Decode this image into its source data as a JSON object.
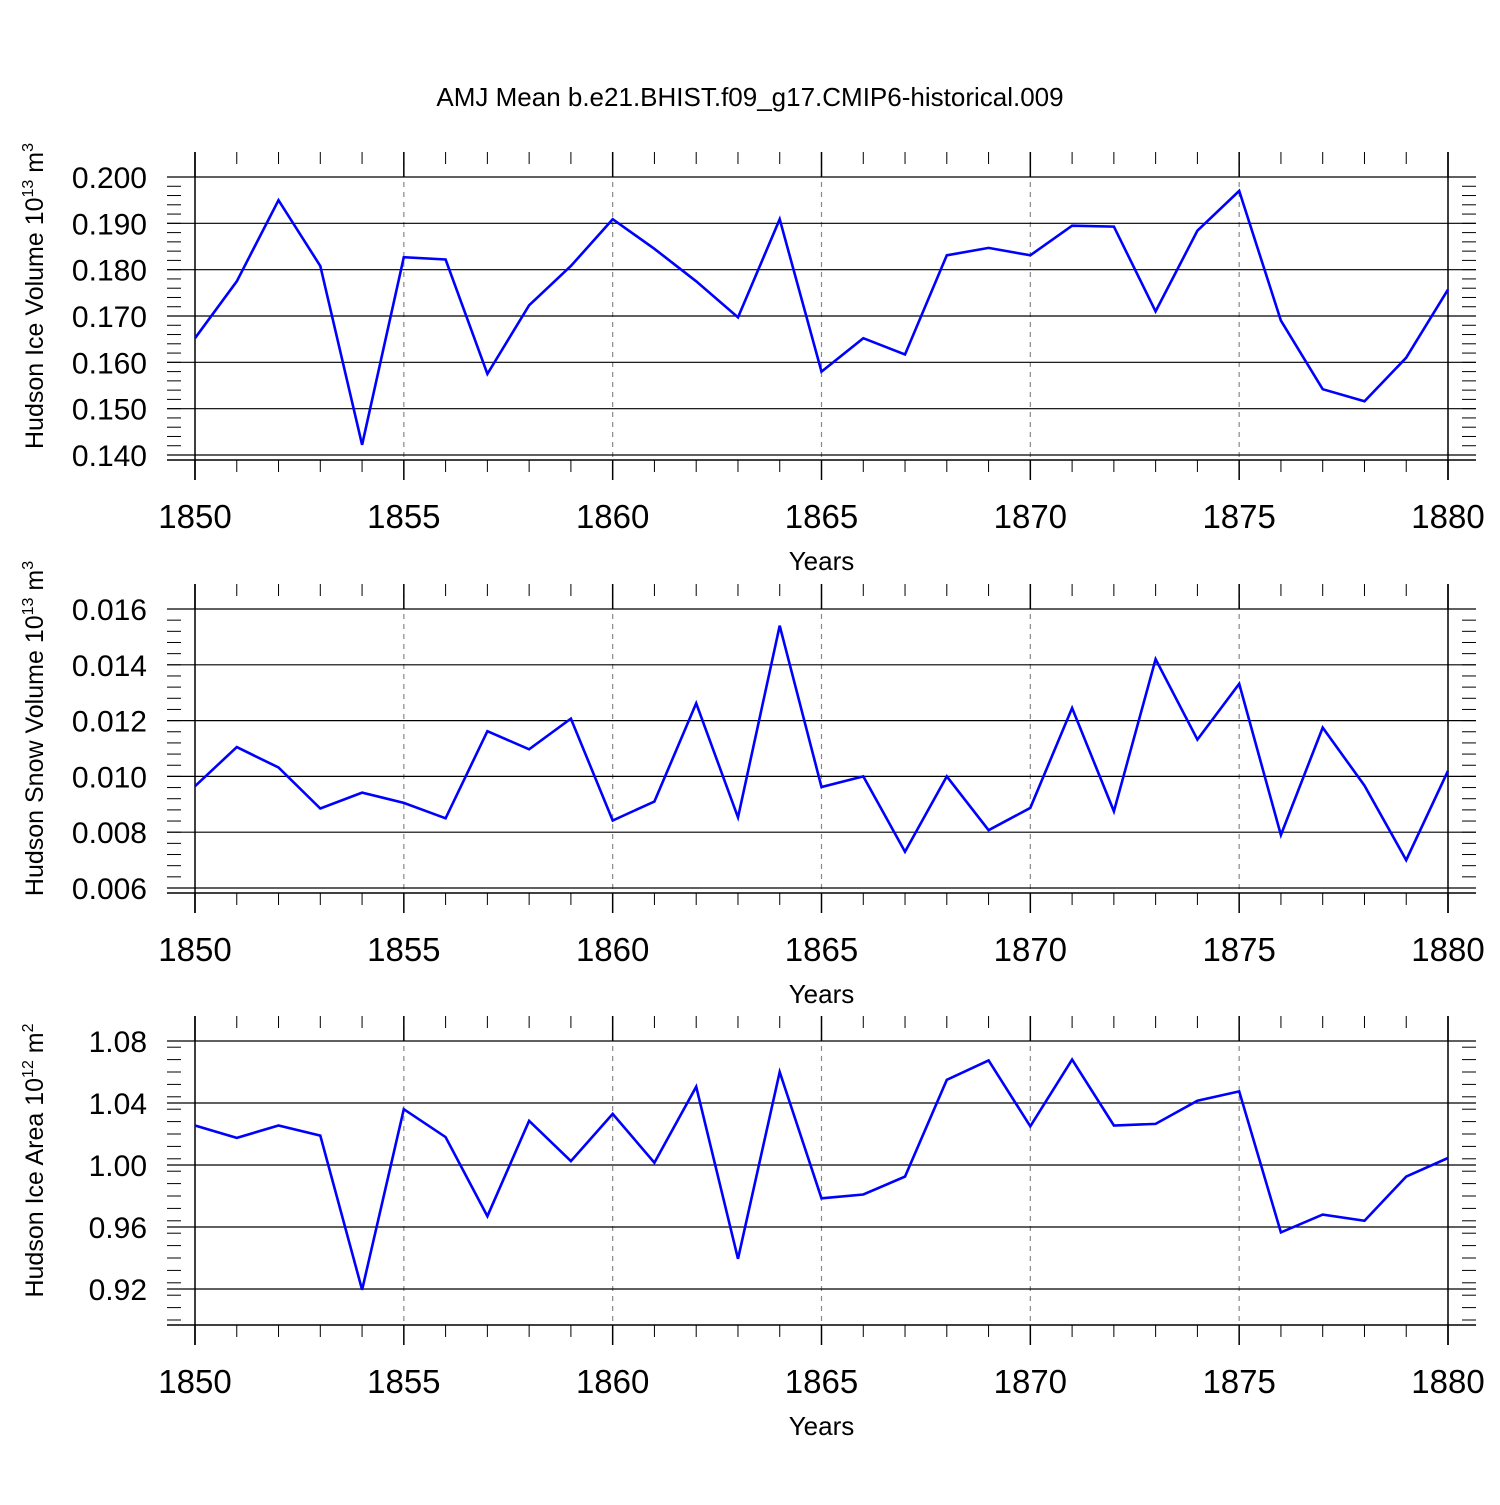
{
  "title": "AMJ Mean b.e21.BHIST.f09_g17.CMIP6-historical.009",
  "colors": {
    "line": "#0000ff",
    "axis": "#000000",
    "grid": "#888888"
  },
  "chart_data": [
    {
      "type": "line",
      "ylabel_main": "Hudson Ice Volume 10",
      "ylabel_exp": "13",
      "ylabel_unit": " m",
      "ylabel_unit_exp": "3",
      "xlabel": "Years",
      "xlim": [
        1850,
        1880
      ],
      "ylim": [
        0.14,
        0.2
      ],
      "ytick_values": [
        0.14,
        0.15,
        0.16,
        0.17,
        0.18,
        0.19,
        0.2
      ],
      "ytick_labels": [
        "0.140",
        "0.150",
        "0.160",
        "0.170",
        "0.180",
        "0.190",
        "0.200"
      ],
      "ytick_minor_step": 0.002,
      "xtick_values": [
        1850,
        1855,
        1860,
        1865,
        1870,
        1875,
        1880
      ],
      "xtick_labels": [
        "1850",
        "1855",
        "1860",
        "1865",
        "1870",
        "1875",
        "1880"
      ],
      "grid_x": [
        1855,
        1860,
        1865,
        1870,
        1875
      ],
      "x": [
        1850,
        1851,
        1852,
        1853,
        1854,
        1855,
        1856,
        1857,
        1858,
        1859,
        1860,
        1861,
        1862,
        1863,
        1864,
        1865,
        1866,
        1867,
        1868,
        1869,
        1870,
        1871,
        1872,
        1873,
        1874,
        1875,
        1876,
        1877,
        1878,
        1879,
        1880
      ],
      "series": [
        {
          "name": "Hudson Ice Volume",
          "values": [
            0.1652,
            0.1775,
            0.195,
            0.1808,
            0.1422,
            0.1827,
            0.1822,
            0.1575,
            0.1723,
            0.1808,
            0.1909,
            0.1845,
            0.1775,
            0.1697,
            0.1909,
            0.158,
            0.1652,
            0.1617,
            0.1831,
            0.1847,
            0.1831,
            0.1895,
            0.1893,
            0.171,
            0.1884,
            0.197,
            0.169,
            0.1542,
            0.1516,
            0.161,
            0.1757
          ]
        }
      ]
    },
    {
      "type": "line",
      "ylabel_main": "Hudson Snow Volume 10",
      "ylabel_exp": "13",
      "ylabel_unit": " m",
      "ylabel_unit_exp": "3",
      "xlabel": "Years",
      "xlim": [
        1850,
        1880
      ],
      "ylim": [
        0.006,
        0.016
      ],
      "ytick_values": [
        0.006,
        0.008,
        0.01,
        0.012,
        0.014,
        0.016
      ],
      "ytick_labels": [
        "0.006",
        "0.008",
        "0.010",
        "0.012",
        "0.014",
        "0.016"
      ],
      "ytick_minor_step": 0.0004,
      "xtick_values": [
        1850,
        1855,
        1860,
        1865,
        1870,
        1875,
        1880
      ],
      "xtick_labels": [
        "1850",
        "1855",
        "1860",
        "1865",
        "1870",
        "1875",
        "1880"
      ],
      "grid_x": [
        1855,
        1860,
        1865,
        1870,
        1875
      ],
      "x": [
        1850,
        1851,
        1852,
        1853,
        1854,
        1855,
        1856,
        1857,
        1858,
        1859,
        1860,
        1861,
        1862,
        1863,
        1864,
        1865,
        1866,
        1867,
        1868,
        1869,
        1870,
        1871,
        1872,
        1873,
        1874,
        1875,
        1876,
        1877,
        1878,
        1879,
        1880
      ],
      "series": [
        {
          "name": "Hudson Snow Volume",
          "values": [
            0.00965,
            0.01105,
            0.01032,
            0.00885,
            0.00942,
            0.00905,
            0.0085,
            0.01162,
            0.01097,
            0.01207,
            0.00842,
            0.0091,
            0.01262,
            0.00853,
            0.0154,
            0.00962,
            0.01,
            0.0073,
            0.01,
            0.00807,
            0.00887,
            0.01245,
            0.00875,
            0.0142,
            0.01132,
            0.01332,
            0.0079,
            0.01175,
            0.00967,
            0.007,
            0.0102
          ]
        }
      ]
    },
    {
      "type": "line",
      "ylabel_main": "Hudson Ice Area 10",
      "ylabel_exp": "12",
      "ylabel_unit": " m",
      "ylabel_unit_exp": "2",
      "xlabel": "Years",
      "xlim": [
        1850,
        1880
      ],
      "ylim": [
        0.9,
        1.08
      ],
      "ytick_values": [
        0.92,
        0.96,
        1.0,
        1.04,
        1.08
      ],
      "ytick_labels": [
        "0.92",
        "0.96",
        "1.00",
        "1.04",
        "1.08"
      ],
      "ytick_minor_step": 0.008,
      "xtick_values": [
        1850,
        1855,
        1860,
        1865,
        1870,
        1875,
        1880
      ],
      "xtick_labels": [
        "1850",
        "1855",
        "1860",
        "1865",
        "1870",
        "1875",
        "1880"
      ],
      "grid_x": [
        1855,
        1860,
        1865,
        1870,
        1875
      ],
      "x": [
        1850,
        1851,
        1852,
        1853,
        1854,
        1855,
        1856,
        1857,
        1858,
        1859,
        1860,
        1861,
        1862,
        1863,
        1864,
        1865,
        1866,
        1867,
        1868,
        1869,
        1870,
        1871,
        1872,
        1873,
        1874,
        1875,
        1876,
        1877,
        1878,
        1879,
        1880
      ],
      "series": [
        {
          "name": "Hudson Ice Area",
          "values": [
            1.0255,
            1.0175,
            1.0255,
            1.019,
            0.9195,
            1.036,
            1.018,
            0.967,
            1.0285,
            1.0025,
            1.033,
            1.0015,
            1.0505,
            0.9395,
            1.06,
            0.9785,
            0.981,
            0.9925,
            1.055,
            1.0675,
            1.025,
            1.068,
            1.0255,
            1.0265,
            1.0415,
            1.0475,
            0.9565,
            0.968,
            0.964,
            0.9925,
            1.0045
          ]
        }
      ]
    }
  ]
}
